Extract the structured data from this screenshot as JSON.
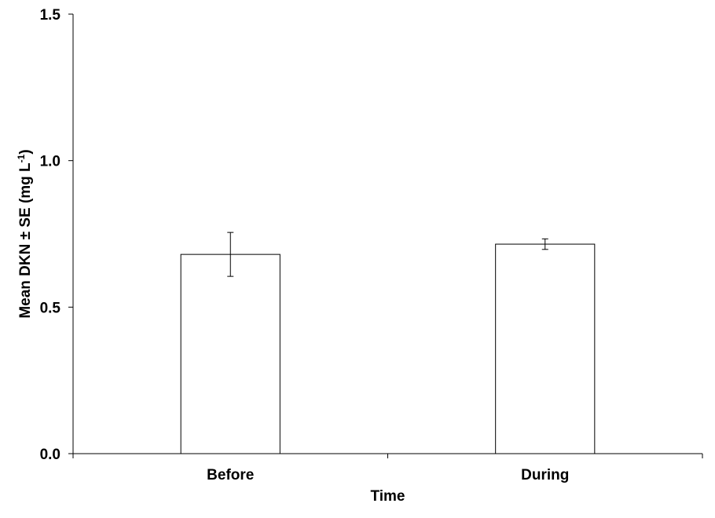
{
  "chart_data": {
    "type": "bar",
    "categories": [
      "Before",
      "During"
    ],
    "values": [
      0.68,
      0.715
    ],
    "errors": [
      0.075,
      0.018
    ],
    "xlabel": "Time",
    "ylabel_main": "Mean DKN ± SE (mg L",
    "ylabel_sup": "-1",
    "ylabel_close": ")",
    "ylim": [
      0,
      1.5
    ],
    "yticks": [
      "0.0",
      "0.5",
      "1.0",
      "1.5"
    ],
    "ytick_values": [
      0,
      0.5,
      1.0,
      1.5
    ],
    "grid": false,
    "legend": "none",
    "bar_fill": "#ffffff",
    "bar_stroke": "#000000"
  }
}
